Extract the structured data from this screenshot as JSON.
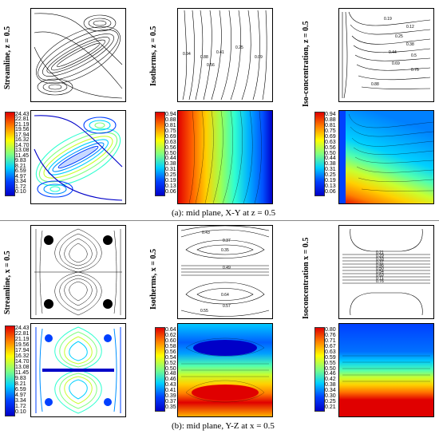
{
  "section_a": {
    "row_labels": {
      "streamline": "Streamline, z = 0.5",
      "isotherms": "Isotherms, z = 0.5",
      "isoconcentration": "Iso-concentration, z = 0.5"
    },
    "caption": "(a): mid plane, X-Y at z = 0.5",
    "streamline_colorbar": [
      "24.43",
      "22.81",
      "21.19",
      "19.56",
      "17.94",
      "16.32",
      "14.70",
      "13.08",
      "11.45",
      "9.83",
      "8.21",
      "6.59",
      "4.97",
      "3.34",
      "1.72",
      "0.10"
    ],
    "isotherms_colorbar": [
      "0.94",
      "0.88",
      "0.81",
      "0.75",
      "0.69",
      "0.63",
      "0.56",
      "0.50",
      "0.44",
      "0.38",
      "0.31",
      "0.25",
      "0.19",
      "0.13",
      "0.06"
    ],
    "isoconc_colorbar": [
      "0.94",
      "0.88",
      "0.81",
      "0.75",
      "0.69",
      "0.63",
      "0.56",
      "0.50",
      "0.44",
      "0.38",
      "0.31",
      "0.25",
      "0.19",
      "0.13",
      "0.06"
    ],
    "isotherm_line_labels": [
      "0.94",
      "0.88",
      "0.41",
      "0.56",
      "0.25",
      "0.09"
    ],
    "isoconc_line_labels": [
      "0.19",
      "0.12",
      "0.25",
      "0.38",
      "0.44",
      "0.5",
      "0.69",
      "0.75",
      "0.88"
    ]
  },
  "section_b": {
    "row_labels": {
      "streamline": "Streamline, x = 0.5",
      "isotherms": "Isotherms, x = 0.5",
      "isoconcentration": "Isoconcentration x = 0.5"
    },
    "caption": "(b): mid plane, Y-Z at x = 0.5",
    "streamline_colorbar": [
      "24.43",
      "22.81",
      "21.19",
      "19.56",
      "17.94",
      "16.32",
      "14.70",
      "13.08",
      "11.45",
      "9.83",
      "8.21",
      "6.59",
      "4.97",
      "3.34",
      "1.72",
      "0.10"
    ],
    "isotherms_colorbar": [
      "0.64",
      "0.62",
      "0.60",
      "0.58",
      "0.56",
      "0.54",
      "0.52",
      "0.50",
      "0.48",
      "0.46",
      "0.43",
      "0.41",
      "0.39",
      "0.37",
      "0.35"
    ],
    "isoconc_colorbar": [
      "0.80",
      "0.76",
      "0.71",
      "0.67",
      "0.63",
      "0.59",
      "0.55",
      "0.50",
      "0.46",
      "0.42",
      "0.38",
      "0.34",
      "0.30",
      "0.25",
      "0.21"
    ],
    "isotherm_line_labels": [
      "0.43",
      "0.37",
      "0.35",
      "0.49",
      "0.64",
      "0.57",
      "0.55"
    ],
    "isoconc_line_labels": [
      "0.21",
      "0.29",
      "0.33",
      "0.37",
      "0.46",
      "0.50",
      "0.54",
      "0.63",
      "0.71",
      "0.76"
    ]
  },
  "colors": {
    "jet": [
      "#0000c8",
      "#0040ff",
      "#0090ff",
      "#00d0ff",
      "#30ffd0",
      "#80ff80",
      "#c8ff30",
      "#ffff00",
      "#ffc800",
      "#ff8000",
      "#ff4000",
      "#e00000"
    ]
  }
}
